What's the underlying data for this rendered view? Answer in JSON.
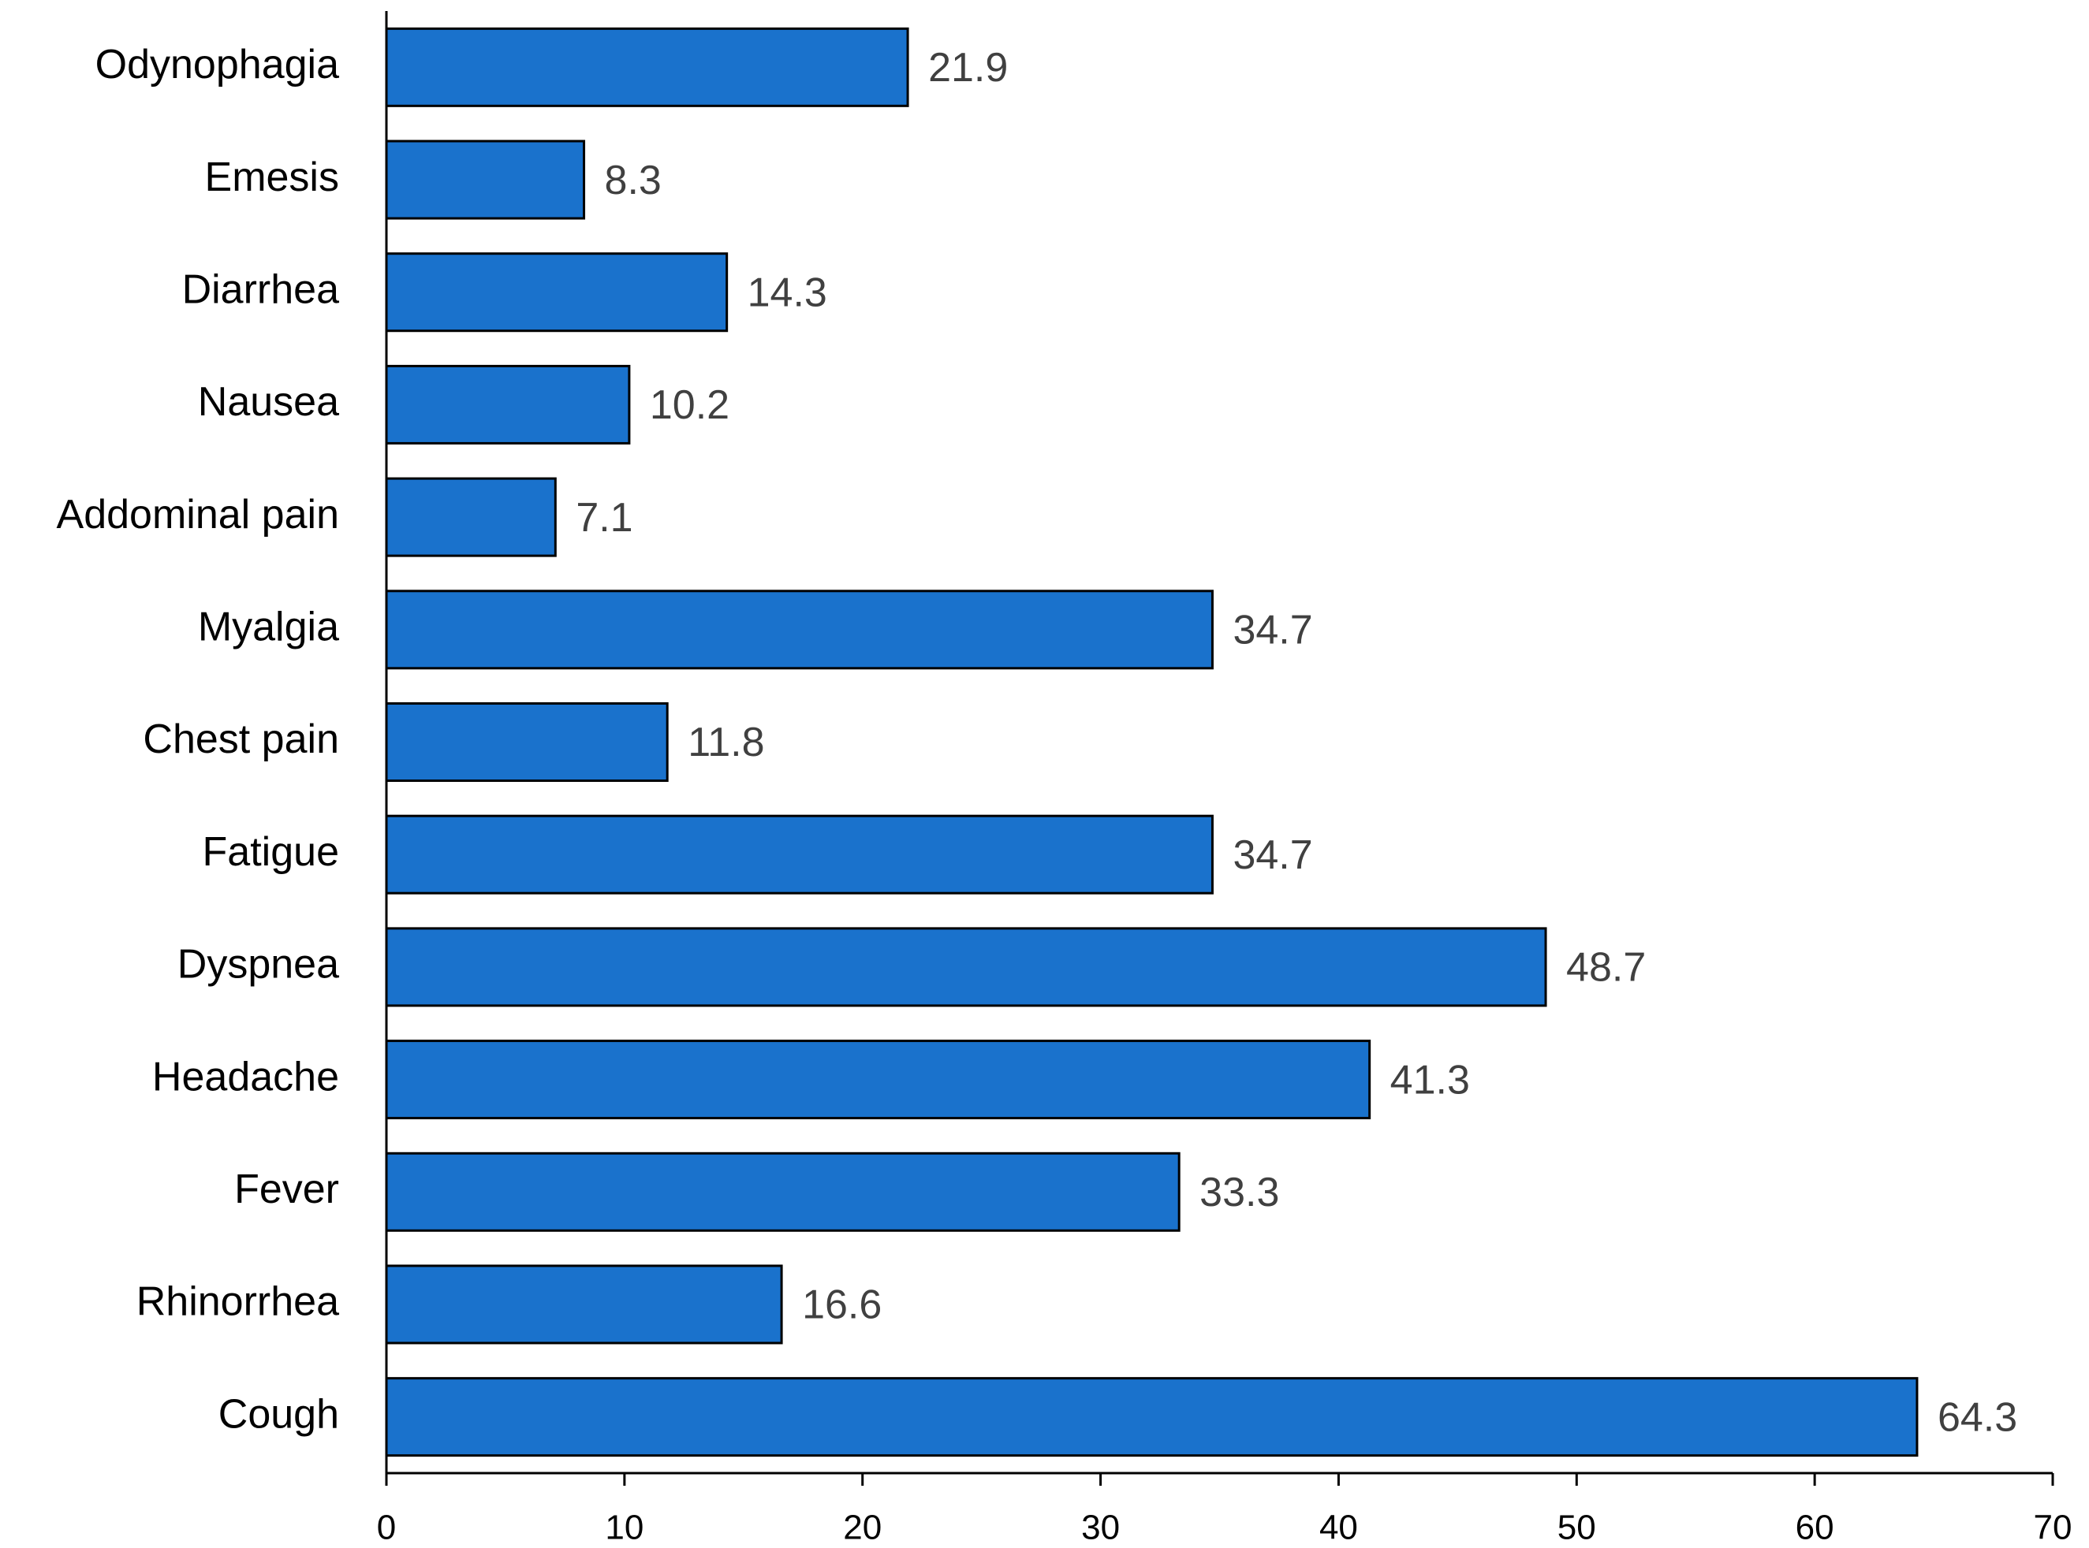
{
  "chart_data": {
    "type": "hbar",
    "categories": [
      "Odynophagia",
      "Emesis",
      "Diarrhea",
      "Nausea",
      "Addominal pain",
      "Myalgia",
      "Chest pain",
      "Fatigue",
      "Dyspnea",
      "Headache",
      "Fever",
      "Rhinorrhea",
      "Cough"
    ],
    "values": [
      21.9,
      8.3,
      14.3,
      10.2,
      7.1,
      34.7,
      11.8,
      34.7,
      48.7,
      41.3,
      33.3,
      16.6,
      64.3
    ],
    "color": "#1a72cc",
    "xlim": [
      0,
      70
    ],
    "xticks": [
      0,
      10,
      20,
      30,
      40,
      50,
      60,
      70
    ]
  }
}
